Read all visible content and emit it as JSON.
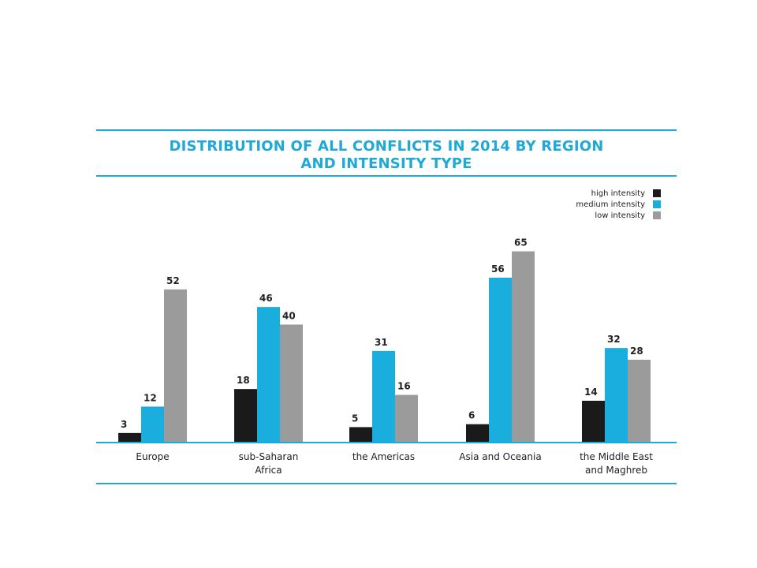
{
  "colors": {
    "accent": "#1fa9d6",
    "high": "#1a1a1a",
    "medium": "#1aaedf",
    "low": "#9b9b9b"
  },
  "chart_data": {
    "type": "bar",
    "title_line1": "DISTRIBUTION OF ALL CONFLICTS IN 2014 BY REGION",
    "title_line2": "AND INTENSITY TYPE",
    "categories": [
      [
        "Europe"
      ],
      [
        "sub-Saharan",
        "Africa"
      ],
      [
        "the Americas"
      ],
      [
        "Asia and Oceania"
      ],
      [
        "the Middle East",
        "and Maghreb"
      ]
    ],
    "series": [
      {
        "name": "high intensity",
        "values": [
          3,
          18,
          5,
          6,
          14
        ]
      },
      {
        "name": "medium intensity",
        "values": [
          12,
          46,
          31,
          56,
          32
        ]
      },
      {
        "name": "low intensity",
        "values": [
          52,
          40,
          16,
          65,
          28
        ]
      }
    ],
    "ylim": [
      0,
      70
    ],
    "grid": false,
    "legend_position": "top-right"
  }
}
